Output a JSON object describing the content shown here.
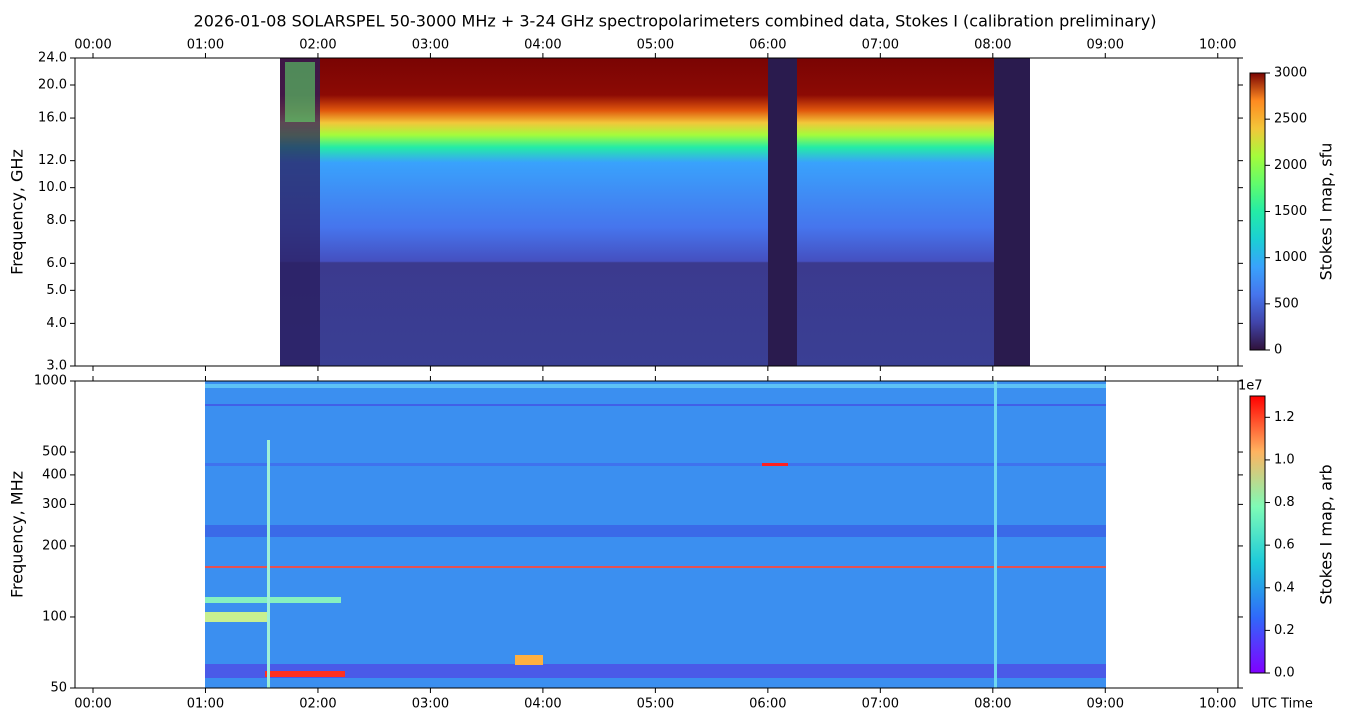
{
  "chart_data": [
    {
      "type": "heatmap",
      "title": "2026-01-08  SOLARSPEL  50-3000 MHz  +  3-24 GHz  spectropolarimeters combined data,  Stokes I  (calibration preliminary)",
      "ylabel": "Frequency, GHz",
      "yscale": "log",
      "xlim": [
        -0.16,
        10.18
      ],
      "xticks": [
        {
          "value": 0,
          "label": "00:00"
        },
        {
          "value": 1,
          "label": "01:00"
        },
        {
          "value": 2,
          "label": "02:00"
        },
        {
          "value": 3,
          "label": "03:00"
        },
        {
          "value": 4,
          "label": "04:00"
        },
        {
          "value": 5,
          "label": "05:00"
        },
        {
          "value": 6,
          "label": "06:00"
        },
        {
          "value": 7,
          "label": "07:00"
        },
        {
          "value": 8,
          "label": "08:00"
        },
        {
          "value": 9,
          "label": "09:00"
        },
        {
          "value": 10,
          "label": "10:00"
        }
      ],
      "ylim": [
        3,
        24
      ],
      "yticks": [
        {
          "value": 3,
          "label": "3.0"
        },
        {
          "value": 4,
          "label": "4.0"
        },
        {
          "value": 5,
          "label": "5.0"
        },
        {
          "value": 6,
          "label": "6.0"
        },
        {
          "value": 8,
          "label": "8.0"
        },
        {
          "value": 10,
          "label": "10.0"
        },
        {
          "value": 12,
          "label": "12.0"
        },
        {
          "value": 16,
          "label": "16.0"
        },
        {
          "value": 20,
          "label": "20.0"
        },
        {
          "value": 24,
          "label": "24.0"
        }
      ],
      "colorbar": {
        "label": "Stokes I map, sfu",
        "colormap": "turbo",
        "lim": [
          0,
          3000
        ],
        "ticks": [
          0,
          500,
          1000,
          1500,
          2000,
          2500,
          3000
        ]
      }
    },
    {
      "type": "heatmap",
      "ylabel": "Frequency, MHz",
      "xlabel": "UTC Time",
      "yscale": "log",
      "xlim": [
        -0.16,
        10.18
      ],
      "xticks": [
        {
          "value": 0,
          "label": "00:00"
        },
        {
          "value": 1,
          "label": "01:00"
        },
        {
          "value": 2,
          "label": "02:00"
        },
        {
          "value": 3,
          "label": "03:00"
        },
        {
          "value": 4,
          "label": "04:00"
        },
        {
          "value": 5,
          "label": "05:00"
        },
        {
          "value": 6,
          "label": "06:00"
        },
        {
          "value": 7,
          "label": "07:00"
        },
        {
          "value": 8,
          "label": "08:00"
        },
        {
          "value": 9,
          "label": "09:00"
        },
        {
          "value": 10,
          "label": "10:00"
        }
      ],
      "ylim": [
        50,
        1000
      ],
      "yticks": [
        50,
        100,
        200,
        300,
        400,
        500,
        1000
      ],
      "colorbar": {
        "label": "Stokes I map, arb",
        "colormap": "rainbow",
        "offset": "1e7",
        "lim": [
          0,
          1.3
        ],
        "ticks": [
          {
            "value": 0,
            "label": "0.0"
          },
          0.2,
          0.4,
          0.6,
          0.8,
          {
            "value": 1,
            "label": "1.0"
          },
          1.2
        ]
      }
    }
  ]
}
